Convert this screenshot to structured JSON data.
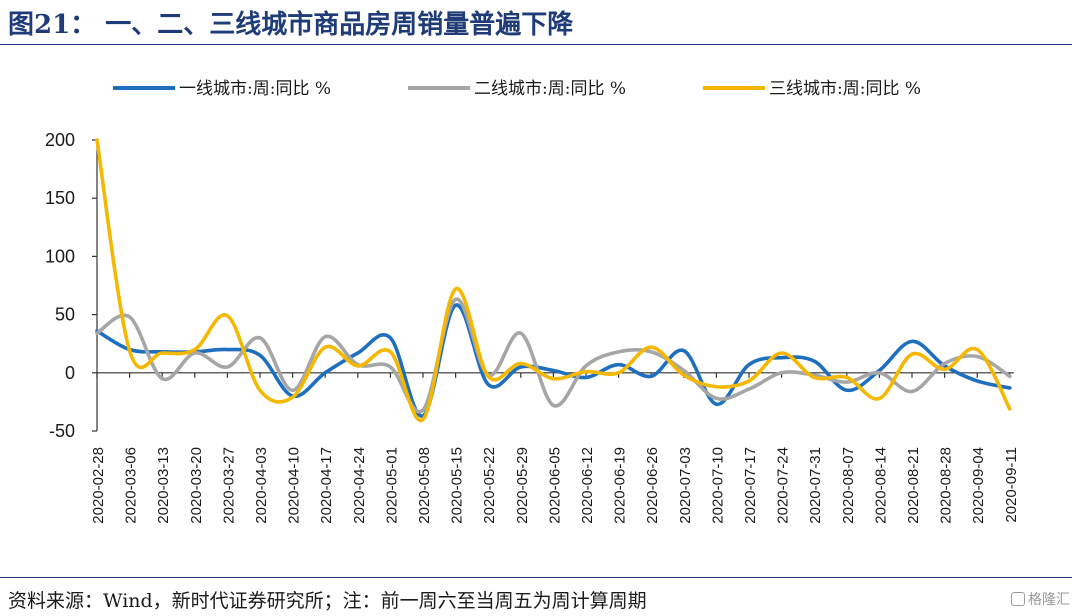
{
  "figure": {
    "title": "图21：   一、二、三线城市商品房周销量普遍下降",
    "source": "资料来源：Wind，新时代证券研究所；注：前一周六至当周五为周计算周期",
    "watermark": "格隆汇"
  },
  "chart_data": {
    "type": "line",
    "title": "",
    "xlabel": "",
    "ylabel": "",
    "ylim": [
      -50,
      200
    ],
    "yticks": [
      -50,
      0,
      50,
      100,
      150,
      200
    ],
    "legend_position": "top",
    "categories": [
      "2020-02-28",
      "2020-03-06",
      "2020-03-13",
      "2020-03-20",
      "2020-03-27",
      "2020-04-03",
      "2020-04-10",
      "2020-04-17",
      "2020-04-24",
      "2020-05-01",
      "2020-05-08",
      "2020-05-15",
      "2020-05-22",
      "2020-05-29",
      "2020-06-05",
      "2020-06-12",
      "2020-06-19",
      "2020-06-26",
      "2020-07-03",
      "2020-07-10",
      "2020-07-17",
      "2020-07-24",
      "2020-07-31",
      "2020-08-07",
      "2020-08-14",
      "2020-08-21",
      "2020-08-28",
      "2020-09-04",
      "2020-09-11"
    ],
    "series": [
      {
        "name": "一线城市:周:同比 %",
        "color": "#1f6fbf",
        "values": [
          36,
          20,
          18,
          18,
          20,
          15,
          -20,
          0,
          17,
          30,
          -37,
          58,
          -10,
          5,
          2,
          -4,
          7,
          -3,
          19,
          -27,
          7,
          13,
          10,
          -15,
          2,
          27,
          6,
          -7,
          -13
        ]
      },
      {
        "name": "二线城市:周:同比 %",
        "color": "#a6a6a6",
        "values": [
          34,
          48,
          -5,
          17,
          5,
          30,
          -15,
          31,
          7,
          5,
          -32,
          63,
          -2,
          34,
          -28,
          6,
          18,
          18,
          2,
          -22,
          -14,
          0,
          -2,
          -8,
          0,
          -16,
          8,
          14,
          -3
        ]
      },
      {
        "name": "三线城市:周:同比 %",
        "color": "#f5b800",
        "values": [
          200,
          19,
          17,
          20,
          49,
          -15,
          -21,
          22,
          6,
          18,
          -40,
          72,
          -3,
          8,
          -5,
          1,
          0,
          22,
          -2,
          -12,
          -7,
          17,
          -4,
          -4,
          -22,
          16,
          3,
          20,
          -31
        ]
      }
    ]
  }
}
